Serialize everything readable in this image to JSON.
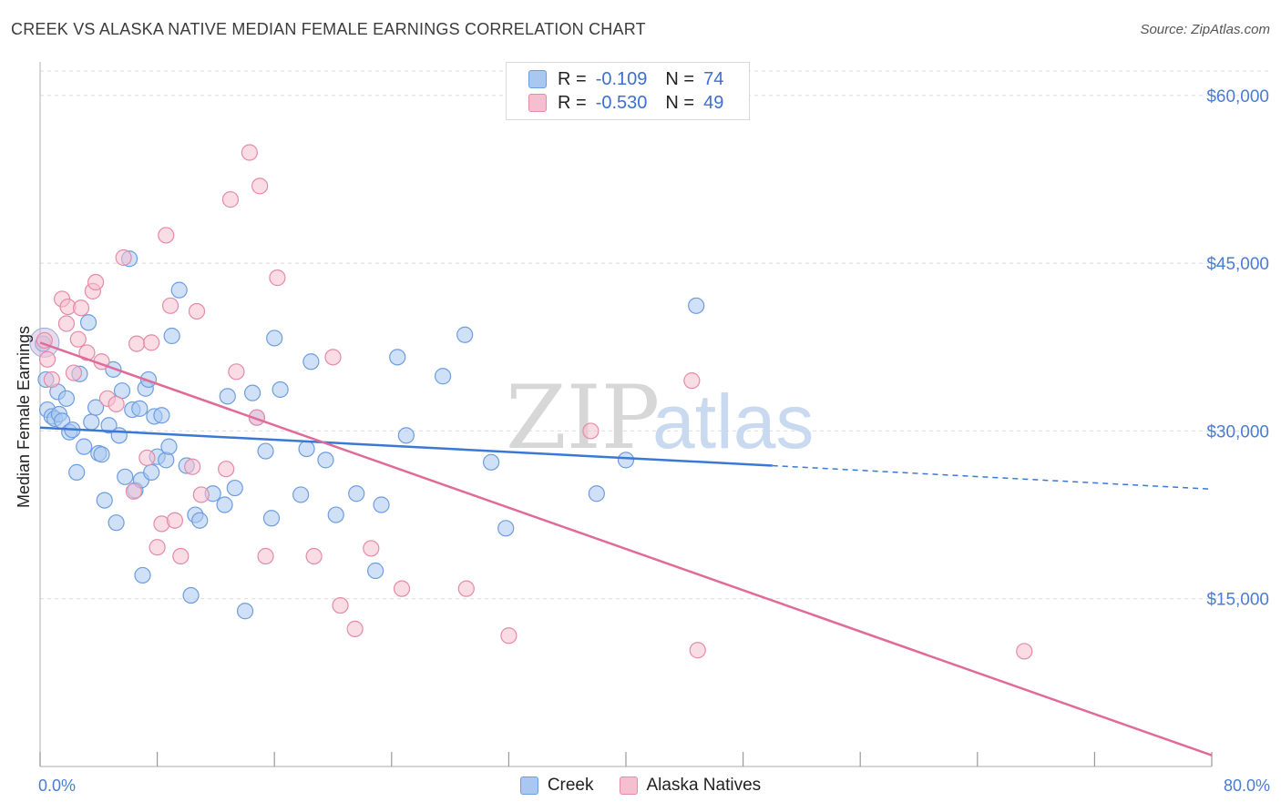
{
  "header": {
    "title": "CREEK VS ALASKA NATIVE MEDIAN FEMALE EARNINGS CORRELATION CHART",
    "source": "Source: ZipAtlas.com"
  },
  "legend": {
    "rows": [
      {
        "r_label": "R =",
        "r_value": "-0.109",
        "n_label": "N =",
        "n_value": "74",
        "color": "#a9c8f1",
        "border": "#6d9de0"
      },
      {
        "r_label": "R =",
        "r_value": "-0.530",
        "n_label": "N =",
        "n_value": "49",
        "color": "#f6bfd0",
        "border": "#e58aa8"
      }
    ]
  },
  "bottom_legend": {
    "creek": "Creek",
    "alaska": "Alaska Natives"
  },
  "watermark": {
    "zip": "ZIP",
    "atlas": "atlas"
  },
  "chart_data": {
    "type": "scatter",
    "title": "CREEK VS ALASKA NATIVE MEDIAN FEMALE EARNINGS CORRELATION CHART",
    "xlabel": "",
    "ylabel": "Median Female Earnings",
    "xlim": [
      0,
      80
    ],
    "ylim": [
      0,
      63000
    ],
    "x_tick_labels": [
      "0.0%",
      "80.0%"
    ],
    "y_ticks": [
      15000,
      30000,
      45000,
      60000
    ],
    "y_tick_labels": [
      "$15,000",
      "$30,000",
      "$45,000",
      "$60,000"
    ],
    "grid": true,
    "legend_position": "top-center",
    "series": [
      {
        "name": "Creek",
        "color": "#a9c8f1",
        "stroke": "#6d9de0",
        "trend": {
          "x": [
            0,
            50
          ],
          "y": [
            30300,
            26900
          ],
          "dashed_to": [
            80,
            24800
          ],
          "color": "#3a78d6"
        },
        "points": [
          [
            0.2,
            37800
          ],
          [
            0.4,
            34600
          ],
          [
            0.5,
            31900
          ],
          [
            0.8,
            31300
          ],
          [
            1.0,
            31100
          ],
          [
            1.2,
            33500
          ],
          [
            1.3,
            31500
          ],
          [
            1.5,
            30900
          ],
          [
            1.8,
            32900
          ],
          [
            2.0,
            29900
          ],
          [
            2.2,
            30100
          ],
          [
            2.5,
            26300
          ],
          [
            2.7,
            35100
          ],
          [
            3.0,
            28600
          ],
          [
            3.3,
            39700
          ],
          [
            3.5,
            30800
          ],
          [
            3.8,
            32100
          ],
          [
            4.0,
            28000
          ],
          [
            4.2,
            27900
          ],
          [
            4.4,
            23800
          ],
          [
            4.7,
            30500
          ],
          [
            5.0,
            35500
          ],
          [
            5.2,
            21800
          ],
          [
            5.4,
            29600
          ],
          [
            5.6,
            33600
          ],
          [
            5.8,
            25900
          ],
          [
            6.1,
            45400
          ],
          [
            6.3,
            31900
          ],
          [
            6.5,
            24700
          ],
          [
            6.8,
            32000
          ],
          [
            6.9,
            25600
          ],
          [
            7.0,
            17100
          ],
          [
            7.2,
            33800
          ],
          [
            7.4,
            34600
          ],
          [
            7.6,
            26300
          ],
          [
            7.8,
            31300
          ],
          [
            8.0,
            27700
          ],
          [
            8.3,
            31400
          ],
          [
            8.6,
            27400
          ],
          [
            8.8,
            28600
          ],
          [
            9.0,
            38500
          ],
          [
            9.5,
            42600
          ],
          [
            10.0,
            26900
          ],
          [
            10.3,
            15300
          ],
          [
            10.6,
            22500
          ],
          [
            10.9,
            22000
          ],
          [
            11.8,
            24400
          ],
          [
            12.6,
            23400
          ],
          [
            12.8,
            33100
          ],
          [
            13.3,
            24900
          ],
          [
            14.0,
            13900
          ],
          [
            14.5,
            33400
          ],
          [
            14.8,
            31200
          ],
          [
            15.4,
            28200
          ],
          [
            15.8,
            22200
          ],
          [
            16.0,
            38300
          ],
          [
            16.4,
            33700
          ],
          [
            17.8,
            24300
          ],
          [
            18.2,
            28400
          ],
          [
            18.5,
            36200
          ],
          [
            19.5,
            27400
          ],
          [
            20.2,
            22500
          ],
          [
            21.6,
            24400
          ],
          [
            22.9,
            17500
          ],
          [
            23.3,
            23400
          ],
          [
            24.4,
            36600
          ],
          [
            25.0,
            29600
          ],
          [
            27.5,
            34900
          ],
          [
            29.0,
            38600
          ],
          [
            30.8,
            27200
          ],
          [
            31.8,
            21300
          ],
          [
            38.0,
            24400
          ],
          [
            40.0,
            27400
          ],
          [
            44.8,
            41200
          ]
        ]
      },
      {
        "name": "Alaska Natives",
        "color": "#f6bfd0",
        "stroke": "#e58aa8",
        "trend": {
          "x": [
            0,
            80
          ],
          "y": [
            37900,
            1000
          ],
          "color": "#e06a98"
        },
        "points": [
          [
            0.3,
            38100
          ],
          [
            0.5,
            36400
          ],
          [
            0.8,
            34600
          ],
          [
            1.5,
            41800
          ],
          [
            1.8,
            39600
          ],
          [
            1.9,
            41100
          ],
          [
            2.3,
            35200
          ],
          [
            2.6,
            38200
          ],
          [
            2.8,
            41000
          ],
          [
            3.2,
            37000
          ],
          [
            3.6,
            42500
          ],
          [
            3.8,
            43300
          ],
          [
            4.2,
            36200
          ],
          [
            4.6,
            32900
          ],
          [
            5.2,
            32400
          ],
          [
            5.7,
            45500
          ],
          [
            6.4,
            24600
          ],
          [
            6.6,
            37800
          ],
          [
            7.3,
            27600
          ],
          [
            7.6,
            37900
          ],
          [
            8.0,
            19600
          ],
          [
            8.3,
            21700
          ],
          [
            8.6,
            47500
          ],
          [
            8.9,
            41200
          ],
          [
            9.2,
            22000
          ],
          [
            9.6,
            18800
          ],
          [
            10.4,
            26800
          ],
          [
            10.7,
            40700
          ],
          [
            11.0,
            24300
          ],
          [
            12.7,
            26600
          ],
          [
            13.0,
            50700
          ],
          [
            13.4,
            35300
          ],
          [
            14.3,
            54900
          ],
          [
            14.8,
            31200
          ],
          [
            15.0,
            51900
          ],
          [
            15.4,
            18800
          ],
          [
            16.2,
            43700
          ],
          [
            18.7,
            18800
          ],
          [
            20.0,
            36600
          ],
          [
            20.5,
            14400
          ],
          [
            21.5,
            12300
          ],
          [
            22.6,
            19500
          ],
          [
            24.7,
            15900
          ],
          [
            29.1,
            15900
          ],
          [
            32.0,
            11700
          ],
          [
            37.6,
            30000
          ],
          [
            44.5,
            34500
          ],
          [
            44.9,
            10400
          ],
          [
            67.2,
            10300
          ]
        ]
      }
    ]
  }
}
